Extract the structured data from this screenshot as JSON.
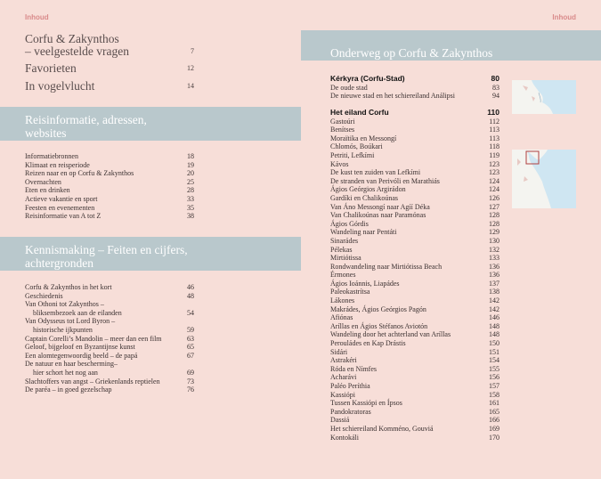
{
  "running_heads": {
    "left": "Inhoud",
    "right": "Inhoud"
  },
  "intro": {
    "line1": "Corfu & Zakynthos",
    "line1b": "– veelgestelde vragen",
    "line1_page": "7",
    "line2": "Favorieten",
    "line2_page": "12",
    "line3": "In vogelvlucht",
    "line3_page": "14"
  },
  "sections": {
    "reis": {
      "title1": "Reisinformatie, adressen,",
      "title2": "websites",
      "items": [
        [
          "Informatiebronnen",
          "18"
        ],
        [
          "Klimaat en reisperiode",
          "19"
        ],
        [
          "Reizen naar en op Corfu & Zakynthos",
          "20"
        ],
        [
          "Overnachten",
          "25"
        ],
        [
          "Eten en drinken",
          "28"
        ],
        [
          "Actieve vakantie en sport",
          "33"
        ],
        [
          "Feesten en evenementen",
          "35"
        ],
        [
          "Reisinformatie van A tot Z",
          "38"
        ]
      ]
    },
    "kennis": {
      "title1": "Kennismaking – Feiten en cijfers,",
      "title2": "achtergronden",
      "items": [
        [
          "Corfu & Zakynthos in het kort",
          "46",
          ""
        ],
        [
          "Geschiedenis",
          "48",
          ""
        ],
        [
          "Van Othoni tot Zakynthos –",
          "",
          ""
        ],
        [
          "bliksembezoek aan de eilanden",
          "54",
          "i"
        ],
        [
          "Van Odysseus tot Lord Byron –",
          "",
          ""
        ],
        [
          "historische ijkpunten",
          "59",
          "i"
        ],
        [
          "Captain Corelli’s Mandolin – meer dan een film",
          "63",
          ""
        ],
        [
          "Geloof, bijgeloof en Byzantijnse kunst",
          "65",
          ""
        ],
        [
          "Een alomtegenwoordig beeld – de papá",
          "67",
          ""
        ],
        [
          "De natuur en haar bescherming–",
          "",
          ""
        ],
        [
          "hier schort het nog aan",
          "69",
          "i"
        ],
        [
          "Slachtoffers van angst – Griekenlands reptielen",
          "73",
          ""
        ],
        [
          "De paréa – in goed gezelschap",
          "76",
          ""
        ]
      ]
    }
  },
  "onderweg": {
    "title": "Onderweg op Corfu & Zakynthos",
    "kerkyra": {
      "head": "Kérkyra (Corfu-Stad)",
      "page": "80",
      "items": [
        [
          "De oude stad",
          "83"
        ],
        [
          "De nieuwe stad en het schiereiland Análipsi",
          "94"
        ]
      ]
    },
    "eiland": {
      "head": "Het eiland Corfu",
      "page": "110",
      "items": [
        [
          "Gastoúri",
          "112"
        ],
        [
          "Benítses",
          "113"
        ],
        [
          "Moraïtika en Messongí",
          "113"
        ],
        [
          "Chlomós, Boúkari",
          "118"
        ],
        [
          "Petriti, Lefkími",
          "119"
        ],
        [
          "Kávos",
          "123"
        ],
        [
          "De kust ten zuiden van Lefkími",
          "123"
        ],
        [
          "De stranden van Perivóli en Marathiás",
          "124"
        ],
        [
          "Ágios Geórgios Argirádon",
          "124"
        ],
        [
          "Gardíki en Chalikoúnas",
          "126"
        ],
        [
          "Van Áno Messongí naar Agíí Déka",
          "127"
        ],
        [
          "Van Chalikoúnas naar Paramónas",
          "128"
        ],
        [
          "Ágios Górdis",
          "128"
        ],
        [
          "Wandeling naar Pentáti",
          "129"
        ],
        [
          "Sinarádes",
          "130"
        ],
        [
          "Pélekas",
          "132"
        ],
        [
          "Mirtiótissa",
          "133"
        ],
        [
          "Rondwandeling naar Mirtiótissa Beach",
          "136"
        ],
        [
          "Érmones",
          "136"
        ],
        [
          "Ágios Ioánnis, Liapádes",
          "137"
        ],
        [
          "Paleokastrítsa",
          "138"
        ],
        [
          "Lákones",
          "142"
        ],
        [
          "Makrádes, Ágios Geórgios Pagón",
          "142"
        ],
        [
          "Afiónas",
          "146"
        ],
        [
          "Aríllas en Ágios Stéfanos Aviotón",
          "148"
        ],
        [
          "Wandeling door het achterland van Aríllas",
          "148"
        ],
        [
          "Perouládes en Kap Drástis",
          "150"
        ],
        [
          "Sidári",
          "151"
        ],
        [
          "Astrakéri",
          "154"
        ],
        [
          "Róda en Nímfes",
          "155"
        ],
        [
          "Acharávi",
          "156"
        ],
        [
          "Paléo Períthia",
          "157"
        ],
        [
          "Kassiópi",
          "158"
        ],
        [
          "Tussen Kassiópi en Ípsos",
          "161"
        ],
        [
          "Pandokratoras",
          "165"
        ],
        [
          "Dassiá",
          "166"
        ],
        [
          "Het schiereiland Komméno, Gouviá",
          "169"
        ],
        [
          "Kontokáli",
          "170"
        ]
      ]
    }
  },
  "colors": {
    "page_bg": "#f7ded8",
    "band": "#b9c8cc",
    "accent": "#d98a8a",
    "map_sea": "#cfe6f2"
  },
  "icons": [
    "map-thumbnail-corfu-town",
    "map-thumbnail-corfu-island"
  ]
}
